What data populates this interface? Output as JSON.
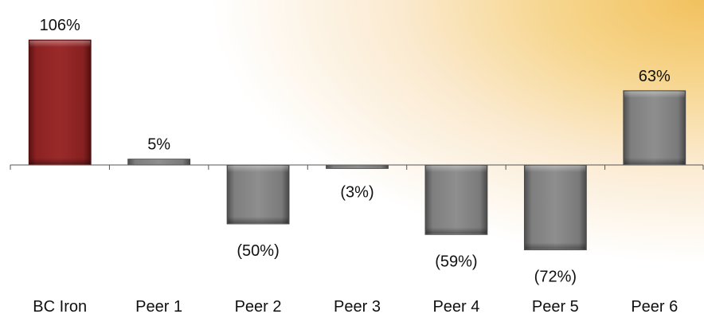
{
  "chart_data": {
    "type": "bar",
    "categories": [
      "BC Iron",
      "Peer 1",
      "Peer 2",
      "Peer 3",
      "Peer 4",
      "Peer 5",
      "Peer 6"
    ],
    "series": [
      {
        "values": [
          106,
          5,
          -50,
          -3,
          -59,
          -72,
          63
        ]
      }
    ],
    "data_labels": [
      "106%",
      "5%",
      "(50%)",
      "(3%)",
      "(59%)",
      "(72%)",
      "63%"
    ],
    "highlight_index": 0,
    "colors": {
      "highlight": "#8b1f1f",
      "default": "#7a7a7a",
      "axis": "#555555"
    },
    "title": "",
    "xlabel": "",
    "ylabel": "",
    "ylim": [
      -90,
      115
    ],
    "grid": false,
    "legend": "none"
  }
}
